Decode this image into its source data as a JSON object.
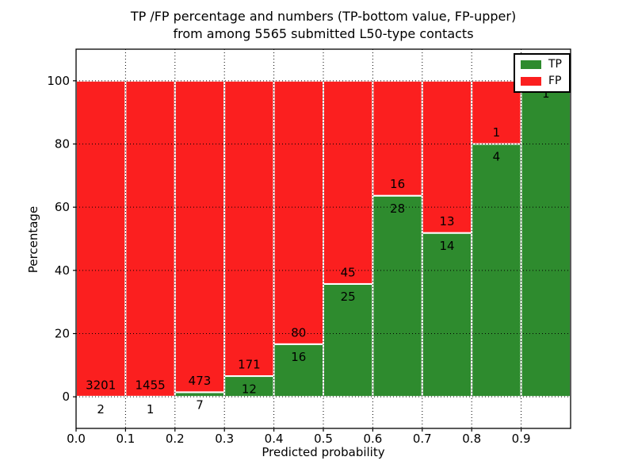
{
  "chart_data": {
    "type": "bar",
    "stacked": true,
    "normalized_to_percent": true,
    "title_lines": [
      "TP /FP percentage and numbers (TP-bottom value, FP-upper)",
      "from among 5565 submitted L50-type contacts"
    ],
    "xlabel": "Predicted probability",
    "ylabel": "Percentage",
    "total_submitted": 5565,
    "xlim": [
      0.0,
      1.0
    ],
    "ylim": [
      -10,
      110
    ],
    "grid": true,
    "legend_position": "upper right",
    "bin_edges": [
      0.0,
      0.1,
      0.2,
      0.3,
      0.4,
      0.5,
      0.6,
      0.7,
      0.8,
      0.9,
      1.0
    ],
    "xtick_labels": [
      "0.0",
      "0.1",
      "0.2",
      "0.3",
      "0.4",
      "0.5",
      "0.6",
      "0.7",
      "0.8",
      "0.9"
    ],
    "xtick_values": [
      0.0,
      0.1,
      0.2,
      0.3,
      0.4,
      0.5,
      0.6,
      0.7,
      0.8,
      0.9
    ],
    "ytick_values": [
      0,
      20,
      40,
      60,
      80,
      100
    ],
    "series": [
      {
        "name": "TP",
        "color": "#2e8b2e",
        "values": [
          2,
          1,
          7,
          12,
          16,
          25,
          28,
          14,
          4,
          1
        ]
      },
      {
        "name": "FP",
        "color": "#fb1f1f",
        "values": [
          3201,
          1455,
          473,
          171,
          80,
          45,
          16,
          13,
          1,
          0
        ]
      }
    ],
    "colors": {
      "tp": "#2e8b2e",
      "fp": "#fb1f1f",
      "bar_edge": "#ffffff",
      "grid": "#000000",
      "text": "#000000"
    }
  }
}
